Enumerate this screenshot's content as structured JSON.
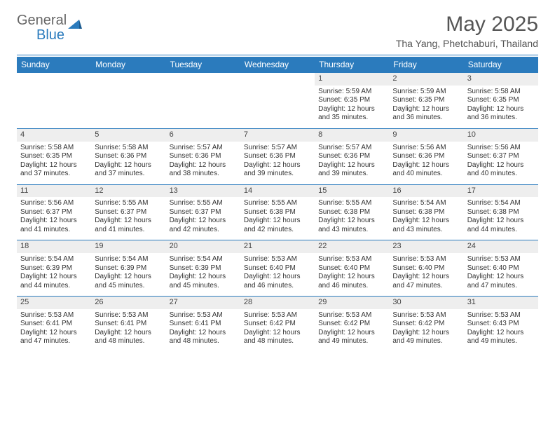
{
  "logo": {
    "text1": "General",
    "text2": "Blue"
  },
  "title": {
    "month": "May 2025",
    "location": "Tha Yang, Phetchaburi, Thailand"
  },
  "colors": {
    "accent": "#2b7bbd",
    "header_text": "#ffffff",
    "daynum_bg": "#eeeeee"
  },
  "day_headers": [
    "Sunday",
    "Monday",
    "Tuesday",
    "Wednesday",
    "Thursday",
    "Friday",
    "Saturday"
  ],
  "weeks": [
    [
      null,
      null,
      null,
      null,
      {
        "n": "1",
        "sr": "5:59 AM",
        "ss": "6:35 PM",
        "dl": "12 hours and 35 minutes."
      },
      {
        "n": "2",
        "sr": "5:59 AM",
        "ss": "6:35 PM",
        "dl": "12 hours and 36 minutes."
      },
      {
        "n": "3",
        "sr": "5:58 AM",
        "ss": "6:35 PM",
        "dl": "12 hours and 36 minutes."
      }
    ],
    [
      {
        "n": "4",
        "sr": "5:58 AM",
        "ss": "6:35 PM",
        "dl": "12 hours and 37 minutes."
      },
      {
        "n": "5",
        "sr": "5:58 AM",
        "ss": "6:36 PM",
        "dl": "12 hours and 37 minutes."
      },
      {
        "n": "6",
        "sr": "5:57 AM",
        "ss": "6:36 PM",
        "dl": "12 hours and 38 minutes."
      },
      {
        "n": "7",
        "sr": "5:57 AM",
        "ss": "6:36 PM",
        "dl": "12 hours and 39 minutes."
      },
      {
        "n": "8",
        "sr": "5:57 AM",
        "ss": "6:36 PM",
        "dl": "12 hours and 39 minutes."
      },
      {
        "n": "9",
        "sr": "5:56 AM",
        "ss": "6:36 PM",
        "dl": "12 hours and 40 minutes."
      },
      {
        "n": "10",
        "sr": "5:56 AM",
        "ss": "6:37 PM",
        "dl": "12 hours and 40 minutes."
      }
    ],
    [
      {
        "n": "11",
        "sr": "5:56 AM",
        "ss": "6:37 PM",
        "dl": "12 hours and 41 minutes."
      },
      {
        "n": "12",
        "sr": "5:55 AM",
        "ss": "6:37 PM",
        "dl": "12 hours and 41 minutes."
      },
      {
        "n": "13",
        "sr": "5:55 AM",
        "ss": "6:37 PM",
        "dl": "12 hours and 42 minutes."
      },
      {
        "n": "14",
        "sr": "5:55 AM",
        "ss": "6:38 PM",
        "dl": "12 hours and 42 minutes."
      },
      {
        "n": "15",
        "sr": "5:55 AM",
        "ss": "6:38 PM",
        "dl": "12 hours and 43 minutes."
      },
      {
        "n": "16",
        "sr": "5:54 AM",
        "ss": "6:38 PM",
        "dl": "12 hours and 43 minutes."
      },
      {
        "n": "17",
        "sr": "5:54 AM",
        "ss": "6:38 PM",
        "dl": "12 hours and 44 minutes."
      }
    ],
    [
      {
        "n": "18",
        "sr": "5:54 AM",
        "ss": "6:39 PM",
        "dl": "12 hours and 44 minutes."
      },
      {
        "n": "19",
        "sr": "5:54 AM",
        "ss": "6:39 PM",
        "dl": "12 hours and 45 minutes."
      },
      {
        "n": "20",
        "sr": "5:54 AM",
        "ss": "6:39 PM",
        "dl": "12 hours and 45 minutes."
      },
      {
        "n": "21",
        "sr": "5:53 AM",
        "ss": "6:40 PM",
        "dl": "12 hours and 46 minutes."
      },
      {
        "n": "22",
        "sr": "5:53 AM",
        "ss": "6:40 PM",
        "dl": "12 hours and 46 minutes."
      },
      {
        "n": "23",
        "sr": "5:53 AM",
        "ss": "6:40 PM",
        "dl": "12 hours and 47 minutes."
      },
      {
        "n": "24",
        "sr": "5:53 AM",
        "ss": "6:40 PM",
        "dl": "12 hours and 47 minutes."
      }
    ],
    [
      {
        "n": "25",
        "sr": "5:53 AM",
        "ss": "6:41 PM",
        "dl": "12 hours and 47 minutes."
      },
      {
        "n": "26",
        "sr": "5:53 AM",
        "ss": "6:41 PM",
        "dl": "12 hours and 48 minutes."
      },
      {
        "n": "27",
        "sr": "5:53 AM",
        "ss": "6:41 PM",
        "dl": "12 hours and 48 minutes."
      },
      {
        "n": "28",
        "sr": "5:53 AM",
        "ss": "6:42 PM",
        "dl": "12 hours and 48 minutes."
      },
      {
        "n": "29",
        "sr": "5:53 AM",
        "ss": "6:42 PM",
        "dl": "12 hours and 49 minutes."
      },
      {
        "n": "30",
        "sr": "5:53 AM",
        "ss": "6:42 PM",
        "dl": "12 hours and 49 minutes."
      },
      {
        "n": "31",
        "sr": "5:53 AM",
        "ss": "6:43 PM",
        "dl": "12 hours and 49 minutes."
      }
    ]
  ],
  "labels": {
    "sunrise": "Sunrise: ",
    "sunset": "Sunset: ",
    "daylight": "Daylight: "
  }
}
